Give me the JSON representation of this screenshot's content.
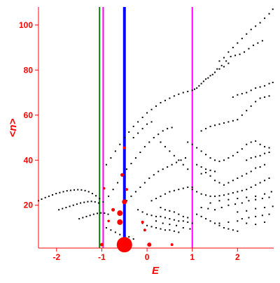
{
  "chart_data": {
    "type": "scatter",
    "xlabel": "E",
    "ylabel": "<n>",
    "xlim": [
      -2.4,
      2.8
    ],
    "ylim": [
      1,
      108
    ],
    "xticks": [
      -2,
      -1,
      0,
      1,
      2
    ],
    "yticks": [
      20,
      40,
      60,
      80,
      100
    ],
    "grid": false,
    "colors": {
      "axis": "#ff0000",
      "points": "#000000",
      "red_markers": "#ff0000",
      "line_blue": "#0000ff",
      "line_magenta": "#ff00ff",
      "line_green": "#008000"
    },
    "vertical_lines": [
      {
        "x": -1.05,
        "color": "#008000",
        "width": 2
      },
      {
        "x": -0.97,
        "color": "#ff00ff",
        "width": 2
      },
      {
        "x": -0.5,
        "color": "#0000ff",
        "width": 4
      },
      {
        "x": 1.0,
        "color": "#ff00ff",
        "width": 2
      }
    ],
    "points": [
      [
        -2.4,
        22
      ],
      [
        -2.33,
        22.7
      ],
      [
        -2.25,
        23.4
      ],
      [
        -2.17,
        24
      ],
      [
        -2.09,
        24.6
      ],
      [
        -2.01,
        25.2
      ],
      [
        -1.93,
        25.6
      ],
      [
        -1.85,
        26
      ],
      [
        -1.77,
        26.4
      ],
      [
        -1.69,
        26.6
      ],
      [
        -1.61,
        26.8
      ],
      [
        -1.53,
        26.9
      ],
      [
        -1.45,
        26.8
      ],
      [
        -1.37,
        26.5
      ],
      [
        -1.29,
        26
      ],
      [
        -1.21,
        25.2
      ],
      [
        -1.13,
        24.2
      ],
      [
        -1.05,
        23
      ],
      [
        -0.97,
        21.5
      ],
      [
        -1.95,
        18
      ],
      [
        -1.87,
        18.5
      ],
      [
        -1.79,
        19
      ],
      [
        -1.71,
        19.5
      ],
      [
        -1.63,
        20
      ],
      [
        -1.55,
        20.5
      ],
      [
        -1.47,
        21
      ],
      [
        -1.39,
        21.3
      ],
      [
        -1.31,
        21.6
      ],
      [
        -1.23,
        21.7
      ],
      [
        -1.15,
        21.5
      ],
      [
        -1.07,
        21
      ],
      [
        -1.5,
        14
      ],
      [
        -1.42,
        14.5
      ],
      [
        -1.34,
        15
      ],
      [
        -1.26,
        15.5
      ],
      [
        -1.18,
        16
      ],
      [
        -1.1,
        16.4
      ],
      [
        -1.02,
        16.6
      ],
      [
        -0.94,
        16.5
      ],
      [
        -0.86,
        16
      ],
      [
        -0.85,
        24
      ],
      [
        -0.75,
        27
      ],
      [
        -0.65,
        30
      ],
      [
        -0.55,
        33
      ],
      [
        -0.45,
        36
      ],
      [
        -0.35,
        38.5
      ],
      [
        -0.25,
        41
      ],
      [
        -0.15,
        43.5
      ],
      [
        -0.05,
        46
      ],
      [
        0.05,
        48
      ],
      [
        0.15,
        50
      ],
      [
        0.25,
        51.5
      ],
      [
        0.35,
        53
      ],
      [
        0.45,
        54
      ],
      [
        0.55,
        54.5
      ],
      [
        -0.9,
        38
      ],
      [
        -0.8,
        41
      ],
      [
        -0.7,
        44
      ],
      [
        -0.6,
        47
      ],
      [
        -0.5,
        50
      ],
      [
        -0.4,
        52.5
      ],
      [
        -0.3,
        55
      ],
      [
        -0.2,
        57
      ],
      [
        -0.1,
        59
      ],
      [
        0,
        61
      ],
      [
        0.1,
        62.5
      ],
      [
        0.2,
        64
      ],
      [
        0.3,
        65.5
      ],
      [
        0.4,
        66.5
      ],
      [
        0.5,
        67.5
      ],
      [
        0.6,
        68.5
      ],
      [
        0.7,
        69.3
      ],
      [
        0.8,
        70
      ],
      [
        0.9,
        70.5
      ],
      [
        1,
        71
      ],
      [
        1.1,
        72
      ],
      [
        1.2,
        74
      ],
      [
        1.3,
        76
      ],
      [
        1.4,
        77.5
      ],
      [
        1.5,
        79
      ],
      [
        1.6,
        80.5
      ],
      [
        1.7,
        81.5
      ],
      [
        1.8,
        83
      ],
      [
        1.05,
        71.5
      ],
      [
        1.15,
        73
      ],
      [
        1.25,
        75
      ],
      [
        1.35,
        76.5
      ],
      [
        1.45,
        78
      ],
      [
        1.55,
        80.5
      ],
      [
        1.65,
        82
      ],
      [
        1.75,
        84
      ],
      [
        1.85,
        86
      ],
      [
        1.95,
        86.5
      ],
      [
        2.05,
        87
      ],
      [
        2.15,
        88
      ],
      [
        2.25,
        89.5
      ],
      [
        2.35,
        91
      ],
      [
        2.45,
        92
      ],
      [
        2.55,
        93
      ],
      [
        1.6,
        84
      ],
      [
        1.7,
        85.5
      ],
      [
        1.8,
        88
      ],
      [
        1.9,
        90
      ],
      [
        2.0,
        92
      ],
      [
        2.1,
        94
      ],
      [
        2.2,
        96
      ],
      [
        2.3,
        98
      ],
      [
        2.4,
        99.5
      ],
      [
        2.5,
        101
      ],
      [
        2.6,
        103
      ],
      [
        2.7,
        105
      ],
      [
        2.78,
        107
      ],
      [
        0.3,
        48
      ],
      [
        0.4,
        46
      ],
      [
        0.5,
        44
      ],
      [
        0.6,
        42
      ],
      [
        0.7,
        40
      ],
      [
        0.8,
        38
      ],
      [
        0.9,
        36
      ],
      [
        1.2,
        53
      ],
      [
        1.3,
        54
      ],
      [
        1.4,
        55
      ],
      [
        1.5,
        55.5
      ],
      [
        1.6,
        56
      ],
      [
        1.7,
        56.5
      ],
      [
        1.8,
        57
      ],
      [
        1.9,
        57.5
      ],
      [
        2.0,
        58
      ],
      [
        2.1,
        60
      ],
      [
        2.2,
        62
      ],
      [
        2.3,
        64
      ],
      [
        2.4,
        66
      ],
      [
        2.5,
        67.5
      ],
      [
        2.6,
        68
      ],
      [
        2.7,
        68.5
      ],
      [
        1.9,
        68
      ],
      [
        2.0,
        69
      ],
      [
        2.1,
        69.5
      ],
      [
        2.2,
        70
      ],
      [
        2.3,
        71
      ],
      [
        2.4,
        72
      ],
      [
        2.5,
        72.5
      ],
      [
        2.6,
        73
      ],
      [
        2.7,
        74
      ],
      [
        2.78,
        74.5
      ],
      [
        0.9,
        48
      ],
      [
        1.0,
        47
      ],
      [
        1.1,
        45.5
      ],
      [
        1.2,
        44
      ],
      [
        1.3,
        42.5
      ],
      [
        1.4,
        41
      ],
      [
        1.5,
        40
      ],
      [
        1.6,
        39.5
      ],
      [
        1.7,
        40
      ],
      [
        1.8,
        41
      ],
      [
        1.9,
        42
      ],
      [
        2.0,
        43.5
      ],
      [
        2.1,
        45
      ],
      [
        2.2,
        47
      ],
      [
        2.3,
        48
      ],
      [
        2.4,
        48.5
      ],
      [
        2.5,
        47
      ],
      [
        2.6,
        46
      ],
      [
        2.7,
        45.5
      ],
      [
        -0.45,
        22
      ],
      [
        -0.35,
        24
      ],
      [
        -0.25,
        26
      ],
      [
        -0.15,
        28
      ],
      [
        -0.05,
        30
      ],
      [
        0.05,
        32
      ],
      [
        0.15,
        33.5
      ],
      [
        0.25,
        35
      ],
      [
        0.35,
        36
      ],
      [
        0.45,
        37
      ],
      [
        0.55,
        38
      ],
      [
        0.65,
        39
      ],
      [
        0.75,
        40
      ],
      [
        0.85,
        41
      ],
      [
        0.1,
        22
      ],
      [
        0.2,
        23
      ],
      [
        0.3,
        24
      ],
      [
        0.4,
        25
      ],
      [
        0.5,
        26
      ],
      [
        0.6,
        26.5
      ],
      [
        0.7,
        27
      ],
      [
        0.8,
        27.5
      ],
      [
        0.9,
        28
      ],
      [
        1.0,
        28
      ],
      [
        1.0,
        27
      ],
      [
        1.1,
        26
      ],
      [
        1.2,
        25
      ],
      [
        1.3,
        24.5
      ],
      [
        1.4,
        24
      ],
      [
        1.5,
        24
      ],
      [
        1.6,
        24.2
      ],
      [
        1.7,
        24.5
      ],
      [
        1.8,
        25
      ],
      [
        1.9,
        25.5
      ],
      [
        2.0,
        26
      ],
      [
        2.1,
        26.5
      ],
      [
        2.2,
        27
      ],
      [
        2.3,
        28
      ],
      [
        2.4,
        29
      ],
      [
        2.5,
        30
      ],
      [
        2.6,
        31
      ],
      [
        2.7,
        32
      ],
      [
        1.2,
        34
      ],
      [
        1.3,
        34.5
      ],
      [
        1.4,
        33
      ],
      [
        1.5,
        31
      ],
      [
        1.6,
        30
      ],
      [
        1.7,
        29
      ],
      [
        1.8,
        30
      ],
      [
        1.9,
        31
      ],
      [
        2.0,
        32
      ],
      [
        2.1,
        33
      ],
      [
        2.2,
        34
      ],
      [
        2.3,
        35
      ],
      [
        2.4,
        36.5
      ],
      [
        2.5,
        37
      ],
      [
        2.6,
        38
      ],
      [
        -0.2,
        18
      ],
      [
        -0.1,
        17
      ],
      [
        0,
        16
      ],
      [
        0.1,
        15.5
      ],
      [
        0.2,
        15
      ],
      [
        0.3,
        15
      ],
      [
        0.4,
        14.5
      ],
      [
        0.5,
        14
      ],
      [
        0.6,
        13.5
      ],
      [
        0.7,
        13
      ],
      [
        0.8,
        13
      ],
      [
        0.9,
        12.5
      ],
      [
        1.0,
        12
      ],
      [
        -0.1,
        12
      ],
      [
        0,
        11
      ],
      [
        0.1,
        10.5
      ],
      [
        0.2,
        10
      ],
      [
        0.3,
        9.5
      ],
      [
        0.4,
        9
      ],
      [
        0.5,
        9
      ],
      [
        0.6,
        8.5
      ],
      [
        0.7,
        8
      ],
      [
        1.1,
        16
      ],
      [
        1.2,
        15
      ],
      [
        1.3,
        14
      ],
      [
        1.4,
        13
      ],
      [
        1.5,
        12
      ],
      [
        1.6,
        11
      ],
      [
        1.7,
        10
      ],
      [
        1.8,
        9.5
      ],
      [
        1.9,
        9
      ],
      [
        2.0,
        8.5
      ],
      [
        1.2,
        19
      ],
      [
        1.35,
        18.5
      ],
      [
        1.5,
        18
      ],
      [
        1.65,
        19
      ],
      [
        1.8,
        20
      ],
      [
        1.95,
        20.5
      ],
      [
        2.1,
        21
      ],
      [
        2.25,
        22
      ],
      [
        2.4,
        22.5
      ],
      [
        2.55,
        23
      ],
      [
        2.7,
        23.5
      ],
      [
        1.4,
        21
      ],
      [
        1.6,
        22
      ],
      [
        1.8,
        22.5
      ],
      [
        2.0,
        23
      ],
      [
        2.2,
        23.5
      ],
      [
        2.4,
        24
      ],
      [
        2.6,
        25
      ],
      [
        2.75,
        26
      ],
      [
        -0.9,
        10
      ],
      [
        -0.8,
        9
      ],
      [
        -0.7,
        8
      ],
      [
        -0.6,
        7
      ],
      [
        -0.4,
        6
      ],
      [
        -0.3,
        5
      ],
      [
        2.1,
        14
      ],
      [
        2.25,
        14.5
      ],
      [
        2.4,
        15
      ],
      [
        2.55,
        15.5
      ],
      [
        2.7,
        16
      ],
      [
        2.0,
        17
      ],
      [
        2.2,
        17.5
      ],
      [
        2.4,
        18.5
      ],
      [
        2.6,
        19
      ],
      [
        2.78,
        19.5
      ],
      [
        0.3,
        19
      ],
      [
        0.4,
        18
      ],
      [
        0.5,
        17.5
      ],
      [
        0.6,
        17
      ],
      [
        0.7,
        16
      ],
      [
        0.8,
        15
      ],
      [
        0.9,
        14.5
      ],
      [
        -0.3,
        50
      ],
      [
        -0.2,
        52
      ],
      [
        -0.1,
        54
      ],
      [
        0,
        56
      ],
      [
        0.1,
        57
      ],
      [
        1.1,
        38
      ],
      [
        1.2,
        37
      ],
      [
        1.3,
        36
      ],
      [
        1.4,
        35.5
      ],
      [
        1.5,
        35
      ],
      [
        2.2,
        40
      ],
      [
        2.3,
        41
      ],
      [
        2.4,
        41.5
      ],
      [
        2.5,
        42
      ],
      [
        2.6,
        43
      ],
      [
        2.7,
        43.5
      ],
      [
        1.6,
        12
      ],
      [
        1.8,
        12.5
      ],
      [
        2.0,
        13
      ],
      [
        2.2,
        12
      ],
      [
        2.4,
        11.5
      ],
      [
        2.6,
        12.5
      ],
      [
        0.2,
        13
      ],
      [
        0.35,
        12
      ],
      [
        0.5,
        11.5
      ],
      [
        0.65,
        11
      ],
      [
        0.8,
        10
      ],
      [
        0.95,
        9.5
      ]
    ],
    "red_markers": [
      {
        "x": -0.5,
        "y": 2.5,
        "size": 11
      },
      {
        "x": -1.0,
        "y": 2.5,
        "size": 2.5
      },
      {
        "x": 0.05,
        "y": 2.5,
        "size": 3
      },
      {
        "x": 0.55,
        "y": 2.5,
        "size": 2
      },
      {
        "x": -0.6,
        "y": 12.5,
        "size": 4
      },
      {
        "x": -0.6,
        "y": 16.5,
        "size": 4
      },
      {
        "x": -0.5,
        "y": 21.5,
        "size": 3.5
      },
      {
        "x": -0.75,
        "y": 18,
        "size": 2.5
      },
      {
        "x": -0.55,
        "y": 33.5,
        "size": 2.5
      },
      {
        "x": -0.5,
        "y": 45.5,
        "size": 2
      },
      {
        "x": -0.45,
        "y": 27,
        "size": 2
      },
      {
        "x": -0.1,
        "y": 12.5,
        "size": 2
      },
      {
        "x": -0.05,
        "y": 9,
        "size": 2
      },
      {
        "x": -0.85,
        "y": 13,
        "size": 1.8
      },
      {
        "x": -0.95,
        "y": 27.5,
        "size": 1.8
      }
    ]
  }
}
